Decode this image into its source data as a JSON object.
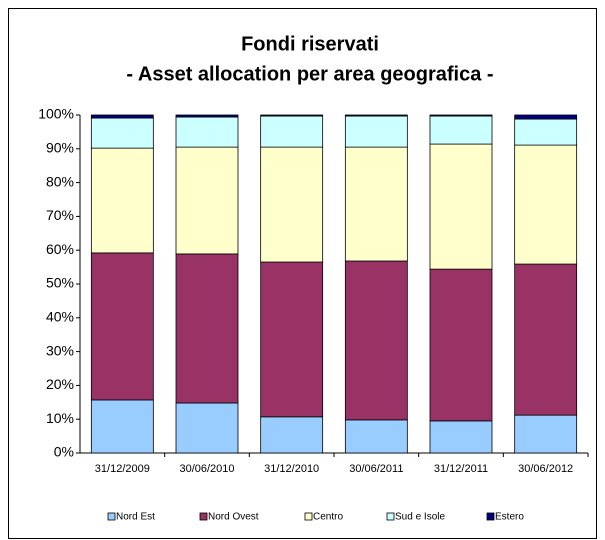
{
  "chart_data": {
    "type": "stacked_bar",
    "title": "Fondi riservati",
    "subtitle": "- Asset allocation per area geografica -",
    "categories": [
      "31/12/2009",
      "30/06/2010",
      "31/12/2010",
      "30/06/2011",
      "31/12/2011",
      "30/06/2012"
    ],
    "series": [
      {
        "name": "Nord Est",
        "color": "#99ccff",
        "values": [
          15.7,
          14.8,
          10.7,
          9.8,
          9.5,
          11.2
        ]
      },
      {
        "name": "Nord Ovest",
        "color": "#993366",
        "values": [
          43.5,
          44.1,
          45.8,
          47.0,
          44.9,
          44.7
        ]
      },
      {
        "name": "Centro",
        "color": "#ffffcc",
        "values": [
          31.0,
          31.6,
          34.0,
          33.7,
          37.0,
          35.2
        ]
      },
      {
        "name": "Sud e Isole",
        "color": "#ccffff",
        "values": [
          8.9,
          8.9,
          9.2,
          9.2,
          8.3,
          7.7
        ]
      },
      {
        "name": "Estero",
        "color": "#000080",
        "values": [
          0.9,
          0.6,
          0.3,
          0.3,
          0.3,
          1.2
        ]
      }
    ],
    "ylim": [
      0,
      100
    ],
    "yticks": [
      {
        "value": 0,
        "label": "0%"
      },
      {
        "value": 10,
        "label": "10%"
      },
      {
        "value": 20,
        "label": "20%"
      },
      {
        "value": 30,
        "label": "30%"
      },
      {
        "value": 40,
        "label": "40%"
      },
      {
        "value": 50,
        "label": "50%"
      },
      {
        "value": 60,
        "label": "60%"
      },
      {
        "value": 70,
        "label": "70%"
      },
      {
        "value": 80,
        "label": "80%"
      },
      {
        "value": 90,
        "label": "90%"
      },
      {
        "value": 100,
        "label": "100%"
      }
    ],
    "legend": "bottom"
  }
}
